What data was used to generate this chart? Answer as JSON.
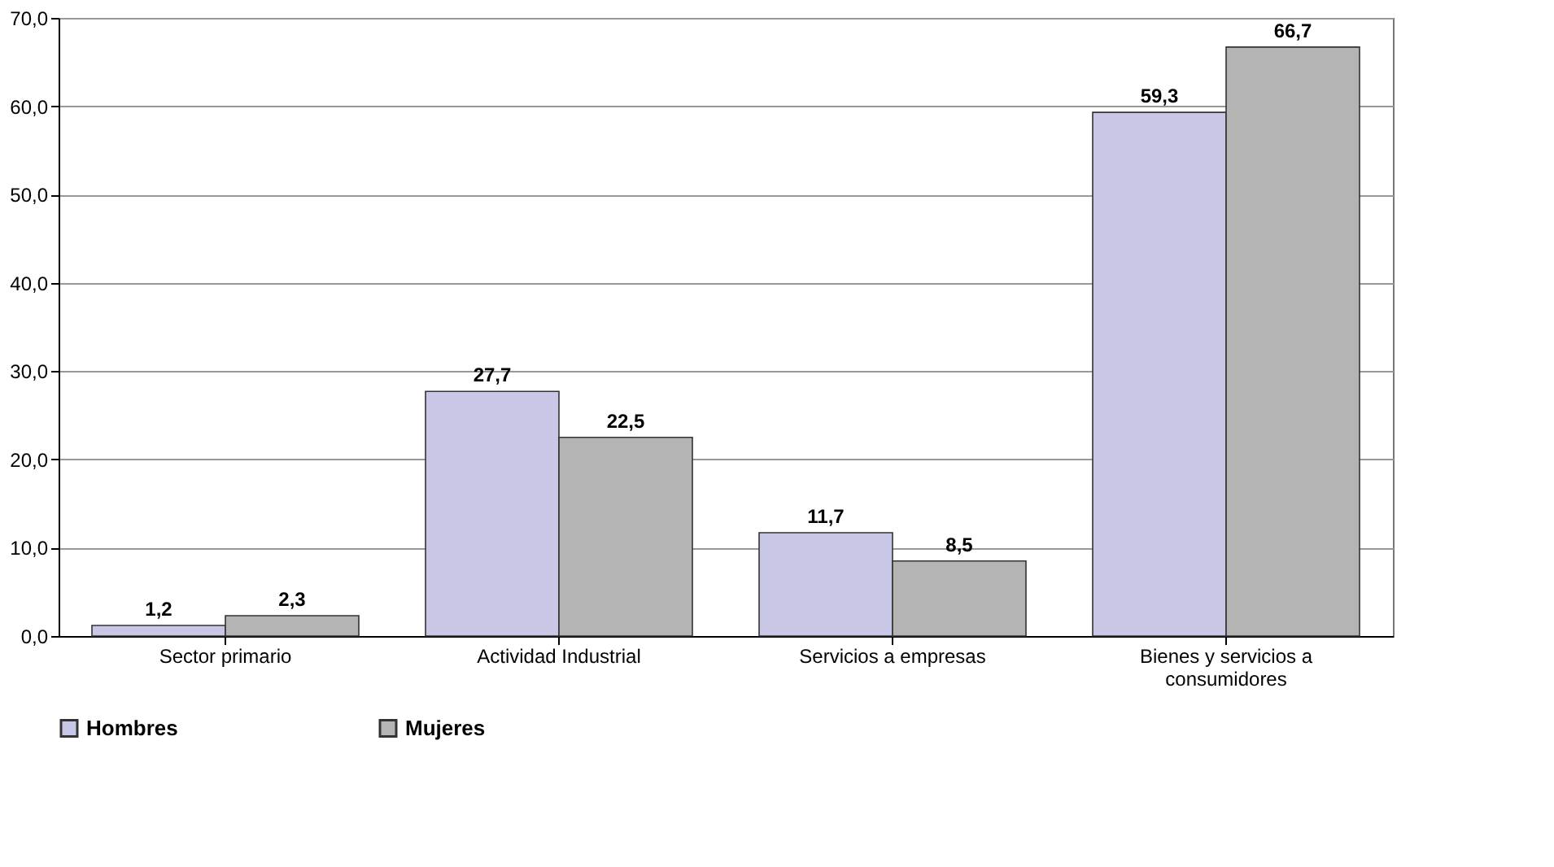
{
  "chart_data": {
    "type": "bar",
    "categories": [
      "Sector primario",
      "Actividad Industrial",
      "Servicios a empresas",
      "Bienes y servicios a consumidores"
    ],
    "series": [
      {
        "name": "Hombres",
        "color": "#c8c8e6",
        "values": [
          1.2,
          27.7,
          11.7,
          59.3
        ],
        "value_labels": [
          "1,2",
          "27,7",
          "11,7",
          "59,3"
        ]
      },
      {
        "name": "Mujeres",
        "color": "#b4b4b4",
        "values": [
          2.3,
          22.5,
          8.5,
          66.7
        ],
        "value_labels": [
          "2,3",
          "22,5",
          "8,5",
          "66,7"
        ]
      }
    ],
    "ylim": [
      0,
      70
    ],
    "yticks": [
      {
        "value": 0,
        "label": "0,0"
      },
      {
        "value": 10,
        "label": "10,0"
      },
      {
        "value": 20,
        "label": "20,0"
      },
      {
        "value": 30,
        "label": "30,0"
      },
      {
        "value": 40,
        "label": "40,0"
      },
      {
        "value": 50,
        "label": "50,0"
      },
      {
        "value": 60,
        "label": "60,0"
      },
      {
        "value": 70,
        "label": "70,0"
      }
    ],
    "grid": "y",
    "legend": "bottom"
  }
}
